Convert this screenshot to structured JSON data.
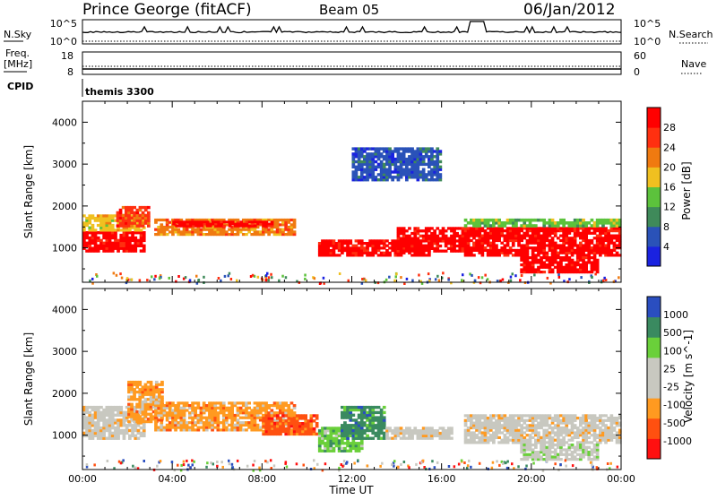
{
  "header": {
    "station": "Prince George (fitACF)",
    "beam": "Beam 05",
    "date": "06/Jan/2012"
  },
  "strips": {
    "nsky": {
      "left_label": "N.Sky",
      "right_label": "N.Search",
      "left_ticks": [
        "10^5",
        "10^0"
      ],
      "right_ticks": [
        "10^5",
        "10^0"
      ]
    },
    "freq": {
      "left_label_top": "Freq.",
      "left_label_unit": "[MHz]",
      "right_label": "Nave",
      "left_ticks": [
        "18",
        "8"
      ],
      "right_ticks": [
        "60",
        "0"
      ]
    },
    "cpid": {
      "left_label": "CPID",
      "value": "themis 3300"
    }
  },
  "axis": {
    "ylabel": "Slant Range [km]",
    "xlabel": "Time UT",
    "y_ticks": [
      "1000",
      "2000",
      "3000",
      "4000"
    ],
    "x_ticks": [
      "00:00",
      "04:00",
      "08:00",
      "12:00",
      "16:00",
      "20:00",
      "00:00"
    ]
  },
  "colors": {
    "power": [
      "#1a22e0",
      "#2a52b8",
      "#3f8a5a",
      "#5cc23c",
      "#f0c020",
      "#f07a10",
      "#ff3010",
      "#ff0000"
    ],
    "velocity": [
      "#ff1010",
      "#ff5010",
      "#ff9a20",
      "#c8c8c0",
      "#c8c8c0",
      "#6ad03a",
      "#3a8a60",
      "#2a4ec0"
    ]
  },
  "chart_data": [
    {
      "type": "heatmap",
      "title": "Power",
      "colorbar_label": "Power [dB]",
      "colorbar_ticks": [
        "4",
        "8",
        "12",
        "16",
        "20",
        "24",
        "28"
      ],
      "x_range": [
        "00:00",
        "00:00"
      ],
      "y_range_km": [
        180,
        4500
      ],
      "bands": [
        {
          "t0": 0.0,
          "t1": 2.8,
          "r0": 900,
          "r1": 1400,
          "level": 7
        },
        {
          "t0": 0.0,
          "t1": 2.8,
          "r0": 1400,
          "r1": 1800,
          "level": 4
        },
        {
          "t0": 1.5,
          "t1": 3.0,
          "r0": 1500,
          "r1": 2000,
          "level": 6
        },
        {
          "t0": 3.2,
          "t1": 9.5,
          "r0": 1300,
          "r1": 1700,
          "level": 5
        },
        {
          "t0": 4.0,
          "t1": 8.5,
          "r0": 1500,
          "r1": 1650,
          "level": 7
        },
        {
          "t0": 10.5,
          "t1": 15.5,
          "r0": 800,
          "r1": 1200,
          "level": 7
        },
        {
          "t0": 14.0,
          "t1": 17.0,
          "r0": 900,
          "r1": 1500,
          "level": 7
        },
        {
          "t0": 12.0,
          "t1": 16.0,
          "r0": 2600,
          "r1": 3400,
          "level": 1
        },
        {
          "t0": 17.0,
          "t1": 24.0,
          "r0": 800,
          "r1": 1500,
          "level": 7
        },
        {
          "t0": 19.5,
          "t1": 23.0,
          "r0": 400,
          "r1": 800,
          "level": 7
        },
        {
          "t0": 17.0,
          "t1": 24.0,
          "r0": 1500,
          "r1": 1700,
          "level": 3
        }
      ]
    },
    {
      "type": "heatmap",
      "title": "Velocity",
      "colorbar_label": "Velocity [m s^-1]",
      "colorbar_ticks": [
        "-1000",
        "-500",
        "-100",
        "-25",
        "25",
        "100",
        "500",
        "1000"
      ],
      "x_range": [
        "00:00",
        "00:00"
      ],
      "y_range_km": [
        180,
        4500
      ],
      "bands": [
        {
          "t0": 0.0,
          "t1": 2.8,
          "r0": 900,
          "r1": 1700,
          "level": 3
        },
        {
          "t0": 2.0,
          "t1": 3.6,
          "r0": 1300,
          "r1": 2300,
          "level": 2
        },
        {
          "t0": 3.2,
          "t1": 9.5,
          "r0": 1100,
          "r1": 1800,
          "level": 2
        },
        {
          "t0": 8.0,
          "t1": 10.5,
          "r0": 1000,
          "r1": 1500,
          "level": 1
        },
        {
          "t0": 10.5,
          "t1": 12.5,
          "r0": 600,
          "r1": 1200,
          "level": 5
        },
        {
          "t0": 11.5,
          "t1": 13.5,
          "r0": 900,
          "r1": 1700,
          "level": 6
        },
        {
          "t0": 13.5,
          "t1": 16.5,
          "r0": 900,
          "r1": 1200,
          "level": 3
        },
        {
          "t0": 17.0,
          "t1": 24.0,
          "r0": 800,
          "r1": 1500,
          "level": 3
        },
        {
          "t0": 19.5,
          "t1": 23.0,
          "r0": 400,
          "r1": 800,
          "level": 4
        }
      ]
    }
  ]
}
